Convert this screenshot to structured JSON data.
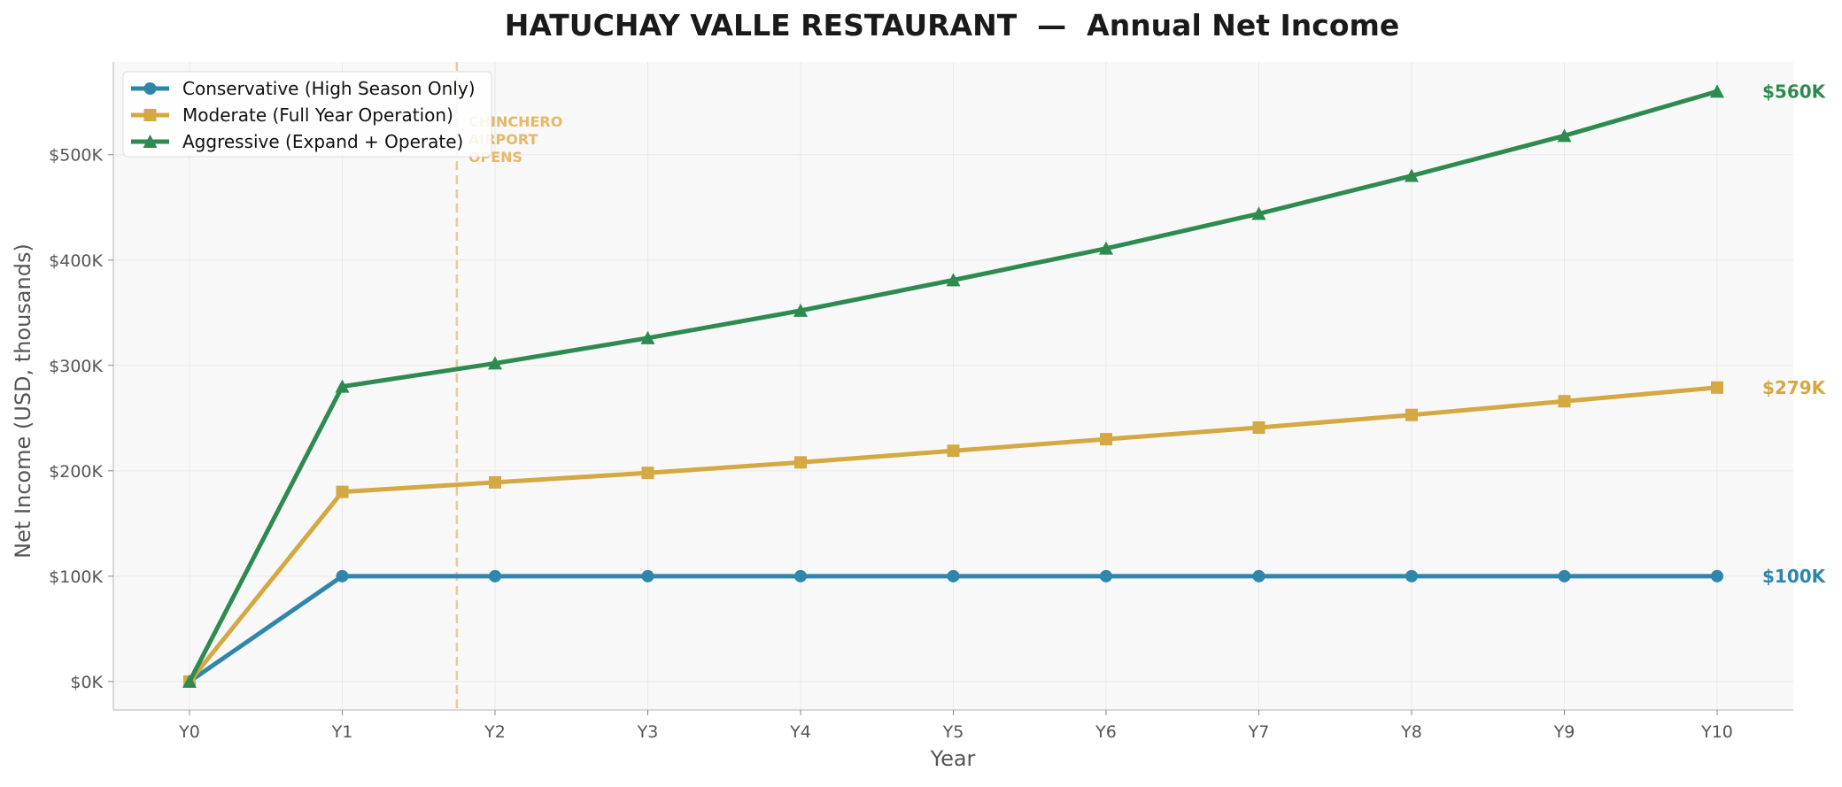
{
  "chart_data": {
    "type": "line",
    "title": "HATUCHAY VALLE RESTAURANT  —  Annual Net Income",
    "xlabel": "Year",
    "ylabel": "Net Income (USD, thousands)",
    "categories": [
      "Y0",
      "Y1",
      "Y2",
      "Y3",
      "Y4",
      "Y5",
      "Y6",
      "Y7",
      "Y8",
      "Y9",
      "Y10"
    ],
    "ylim": [
      -27,
      588
    ],
    "yticks": [
      0,
      100,
      200,
      300,
      400,
      500
    ],
    "ytick_labels": [
      "$0K",
      "$100K",
      "$200K",
      "$300K",
      "$400K",
      "$500K"
    ],
    "grid": true,
    "legend_position": "top-left",
    "series": [
      {
        "name": "Conservative (High Season Only)",
        "color": "#2E86AB",
        "marker": "circle",
        "values": [
          0,
          100,
          100,
          100,
          100,
          100,
          100,
          100,
          100,
          100,
          100
        ],
        "end_label": "$100K"
      },
      {
        "name": "Moderate (Full Year Operation)",
        "color": "#D4A843",
        "marker": "square",
        "values": [
          0,
          180,
          189,
          198,
          208,
          219,
          230,
          241,
          253,
          266,
          279
        ],
        "end_label": "$279K"
      },
      {
        "name": "Aggressive (Expand + Operate)",
        "color": "#2E8B4F",
        "marker": "triangle",
        "values": [
          0,
          280,
          302,
          326,
          352,
          381,
          411,
          444,
          480,
          518,
          560
        ],
        "end_label": "$560K"
      }
    ],
    "annotation": {
      "x": 1.75,
      "lines": [
        "CHINCHERO",
        "AIRPORT",
        "OPENS"
      ],
      "color": "#E3B96A",
      "style": "dashed vertical line"
    }
  }
}
